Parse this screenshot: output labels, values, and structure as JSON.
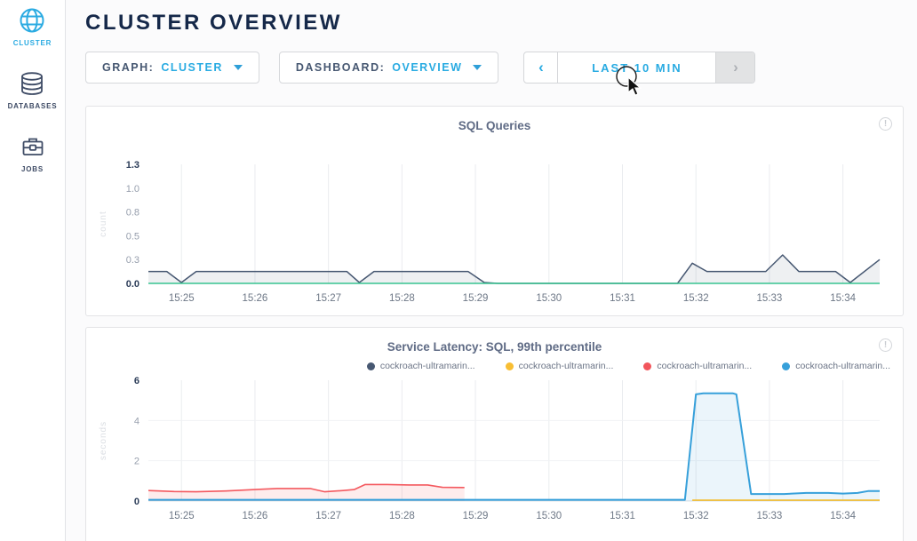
{
  "app": {
    "accent": "#29abe2",
    "navy": "#152849"
  },
  "header": {
    "title": "CLUSTER OVERVIEW"
  },
  "sidebar": {
    "items": [
      {
        "label": "CLUSTER",
        "icon": "globe-icon",
        "active": true
      },
      {
        "label": "DATABASES",
        "icon": "database-icon",
        "active": false
      },
      {
        "label": "JOBS",
        "icon": "briefcase-icon",
        "active": false
      }
    ]
  },
  "controls": {
    "graph": {
      "label": "GRAPH:",
      "value": "CLUSTER"
    },
    "dashboard": {
      "label": "DASHBOARD:",
      "value": "OVERVIEW"
    },
    "timerange": {
      "prev": "‹",
      "label": "LAST 10 MIN",
      "next": "›"
    }
  },
  "info_glyph": "!",
  "chart_data": [
    {
      "type": "area",
      "title": "SQL Queries",
      "ylabel": "count",
      "ylim": [
        0,
        1.3
      ],
      "xlim": [
        24.55,
        34.5
      ],
      "grid": {
        "vertical": true,
        "horizontal": false
      },
      "yticks": [
        {
          "label": "0.0",
          "v": 0,
          "bold": true
        },
        {
          "label": "0.3",
          "v": 0.26,
          "bold": false
        },
        {
          "label": "0.5",
          "v": 0.52,
          "bold": false
        },
        {
          "label": "0.8",
          "v": 0.78,
          "bold": false
        },
        {
          "label": "1.0",
          "v": 1.04,
          "bold": false
        },
        {
          "label": "1.3",
          "v": 1.3,
          "bold": true
        }
      ],
      "xticks": [
        {
          "label": "15:25",
          "t": 25
        },
        {
          "label": "15:26",
          "t": 26
        },
        {
          "label": "15:27",
          "t": 27
        },
        {
          "label": "15:28",
          "t": 28
        },
        {
          "label": "15:29",
          "t": 29
        },
        {
          "label": "15:30",
          "t": 30
        },
        {
          "label": "15:31",
          "t": 31
        },
        {
          "label": "15:32",
          "t": 32
        },
        {
          "label": "15:33",
          "t": 33
        },
        {
          "label": "15:34",
          "t": 34
        }
      ],
      "series": [
        {
          "name": "sql-queries",
          "color": "#475872",
          "fill": "rgba(71,88,114,0.09)",
          "width": 1.5,
          "points": [
            [
              24.55,
              0.13
            ],
            [
              24.8,
              0.13
            ],
            [
              25.0,
              0.01
            ],
            [
              25.2,
              0.13
            ],
            [
              27.25,
              0.13
            ],
            [
              27.42,
              0.01
            ],
            [
              27.62,
              0.13
            ],
            [
              28.9,
              0.13
            ],
            [
              29.12,
              0.01
            ],
            [
              29.3,
              0
            ],
            [
              31.75,
              0
            ],
            [
              31.95,
              0.22
            ],
            [
              32.15,
              0.13
            ],
            [
              32.95,
              0.13
            ],
            [
              33.18,
              0.31
            ],
            [
              33.4,
              0.13
            ],
            [
              33.9,
              0.13
            ],
            [
              34.1,
              0.01
            ],
            [
              34.5,
              0.26
            ]
          ]
        },
        {
          "name": "zero-line",
          "color": "#36c490",
          "fill": null,
          "width": 1.5,
          "points": [
            [
              24.55,
              0
            ],
            [
              34.5,
              0
            ]
          ]
        }
      ]
    },
    {
      "type": "area",
      "title": "Service Latency: SQL, 99th percentile",
      "ylabel": "seconds",
      "ylim": [
        0,
        6
      ],
      "xlim": [
        24.55,
        34.5
      ],
      "grid": {
        "vertical": true,
        "horizontal": true
      },
      "yticks": [
        {
          "label": "0",
          "v": 0,
          "bold": true
        },
        {
          "label": "2",
          "v": 2,
          "bold": false
        },
        {
          "label": "4",
          "v": 4,
          "bold": false
        },
        {
          "label": "6",
          "v": 6,
          "bold": true
        }
      ],
      "xticks": [
        {
          "label": "15:25",
          "t": 25
        },
        {
          "label": "15:26",
          "t": 26
        },
        {
          "label": "15:27",
          "t": 27
        },
        {
          "label": "15:28",
          "t": 28
        },
        {
          "label": "15:29",
          "t": 29
        },
        {
          "label": "15:30",
          "t": 30
        },
        {
          "label": "15:31",
          "t": 31
        },
        {
          "label": "15:32",
          "t": 32
        },
        {
          "label": "15:33",
          "t": 33
        },
        {
          "label": "15:34",
          "t": 34
        }
      ],
      "legend": [
        {
          "label": "cockroach-ultramarin...",
          "color": "#475872"
        },
        {
          "label": "cockroach-ultramarin...",
          "color": "#f8be33"
        },
        {
          "label": "cockroach-ultramarin...",
          "color": "#f2555c"
        },
        {
          "label": "cockroach-ultramarin...",
          "color": "#37a0da"
        }
      ],
      "series": [
        {
          "name": "node-1-p99",
          "color": "#475872",
          "fill": null,
          "width": 1.5,
          "points": []
        },
        {
          "name": "node-3-p99",
          "color": "#f4595f",
          "fill": "rgba(244,95,100,0.12)",
          "width": 1.6,
          "points": [
            [
              24.55,
              0.52
            ],
            [
              24.9,
              0.47
            ],
            [
              25.2,
              0.46
            ],
            [
              25.6,
              0.5
            ],
            [
              26.0,
              0.57
            ],
            [
              26.3,
              0.62
            ],
            [
              26.75,
              0.62
            ],
            [
              26.95,
              0.46
            ],
            [
              27.2,
              0.52
            ],
            [
              27.35,
              0.57
            ],
            [
              27.5,
              0.82
            ],
            [
              27.8,
              0.82
            ],
            [
              28.1,
              0.8
            ],
            [
              28.35,
              0.8
            ],
            [
              28.55,
              0.68
            ],
            [
              28.85,
              0.67
            ]
          ]
        },
        {
          "name": "node-4-p99",
          "color": "#37a0da",
          "fill": "rgba(55,160,218,0.10)",
          "width": 2,
          "points": [
            [
              24.55,
              0.06
            ],
            [
              31.85,
              0.06
            ],
            [
              32.0,
              5.3
            ],
            [
              32.1,
              5.35
            ],
            [
              32.5,
              5.35
            ],
            [
              32.55,
              5.3
            ],
            [
              32.75,
              0.35
            ],
            [
              33.2,
              0.35
            ],
            [
              33.5,
              0.4
            ],
            [
              33.8,
              0.4
            ],
            [
              34.0,
              0.37
            ],
            [
              34.2,
              0.4
            ],
            [
              34.35,
              0.5
            ],
            [
              34.5,
              0.5
            ]
          ]
        },
        {
          "name": "node-2-p99",
          "color": "#f4bd30",
          "fill": null,
          "width": 1.6,
          "points": [
            [
              31.95,
              0.04
            ],
            [
              34.5,
              0.04
            ]
          ]
        }
      ]
    }
  ]
}
